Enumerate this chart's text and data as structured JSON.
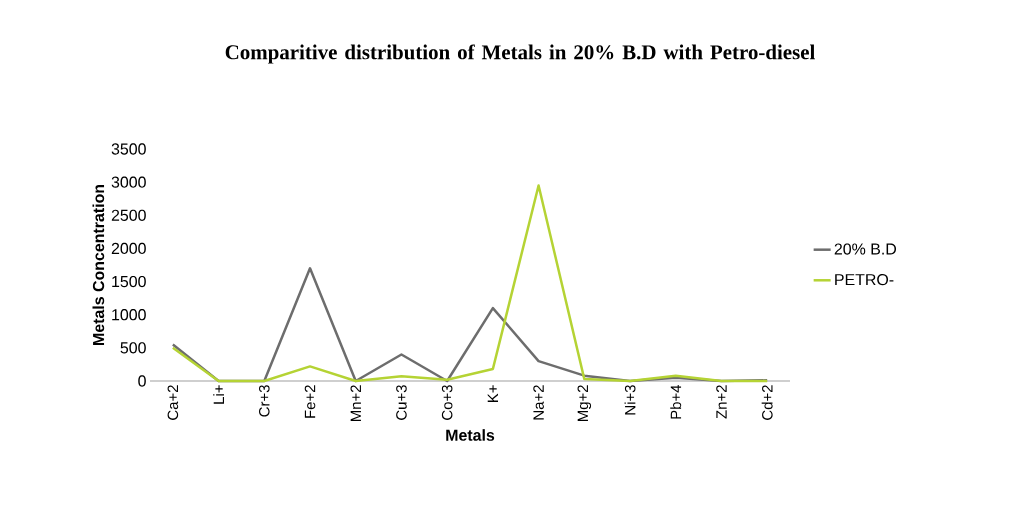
{
  "chart_data": {
    "type": "line",
    "title": "Comparitive distribution of Metals in 20% B.D with Petro-diesel",
    "xlabel": "Metals",
    "ylabel": "Metals Concentration",
    "categories": [
      "Ca+2",
      "Li+",
      "Cr+3",
      "Fe+2",
      "Mn+2",
      "Cu+3",
      "Co+3",
      "K+",
      "Na+2",
      "Mg+2",
      "Ni+3",
      "Pb+4",
      "Zn+2",
      "Cd+2"
    ],
    "series": [
      {
        "name": "20% B.D",
        "color": "#6d6d6d",
        "values": [
          550,
          0,
          0,
          1700,
          0,
          400,
          0,
          1100,
          300,
          80,
          0,
          50,
          0,
          10
        ]
      },
      {
        "name": "PETRO-",
        "color": "#b5d334",
        "values": [
          500,
          0,
          0,
          220,
          0,
          70,
          20,
          180,
          2950,
          30,
          0,
          80,
          0,
          0
        ]
      }
    ],
    "ylim": [
      0,
      3500
    ],
    "yticks": [
      0,
      500,
      1000,
      1500,
      2000,
      2500,
      3000,
      3500
    ],
    "grid": false,
    "legend": "right",
    "marker": "none",
    "line_style": "solid"
  }
}
